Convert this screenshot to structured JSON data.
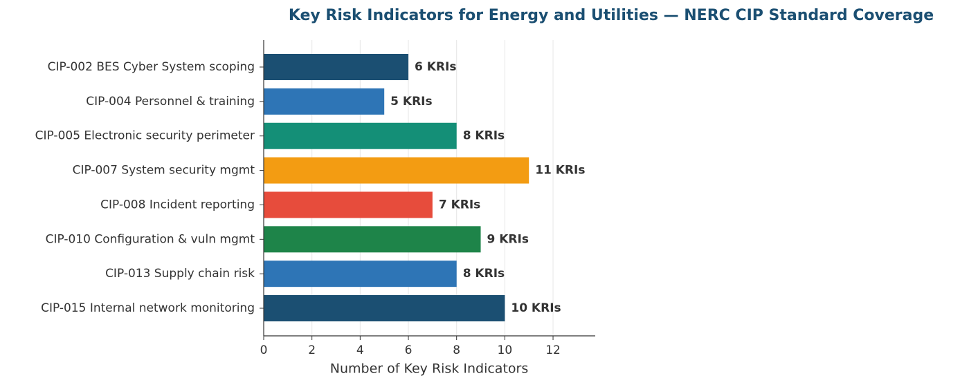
{
  "chart_data": {
    "type": "hbar",
    "title": "Key Risk Indicators for Energy and Utilities — NERC CIP Standard Coverage",
    "xlabel": "Number of Key Risk Indicators",
    "categories": [
      "CIP-002 BES Cyber System scoping",
      "CIP-004 Personnel & training",
      "CIP-005 Electronic security perimeter",
      "CIP-007 System security mgmt",
      "CIP-008 Incident reporting",
      "CIP-010 Configuration & vuln mgmt",
      "CIP-013 Supply chain risk",
      "CIP-015 Internal network monitoring"
    ],
    "values": [
      6,
      5,
      8,
      11,
      7,
      9,
      8,
      10
    ],
    "value_labels": [
      "6 KRIs",
      "5 KRIs",
      "8 KRIs",
      "11 KRIs",
      "7 KRIs",
      "9 KRIs",
      "8 KRIs",
      "10 KRIs"
    ],
    "colors": [
      "#1b4f72",
      "#2e75b6",
      "#148f77",
      "#f39c12",
      "#e74c3c",
      "#1e8449",
      "#2e75b6",
      "#1b4f72"
    ],
    "xlim": [
      0,
      13.75
    ],
    "xticks": [
      0,
      2,
      4,
      6,
      8,
      10,
      12
    ],
    "grid": true
  }
}
